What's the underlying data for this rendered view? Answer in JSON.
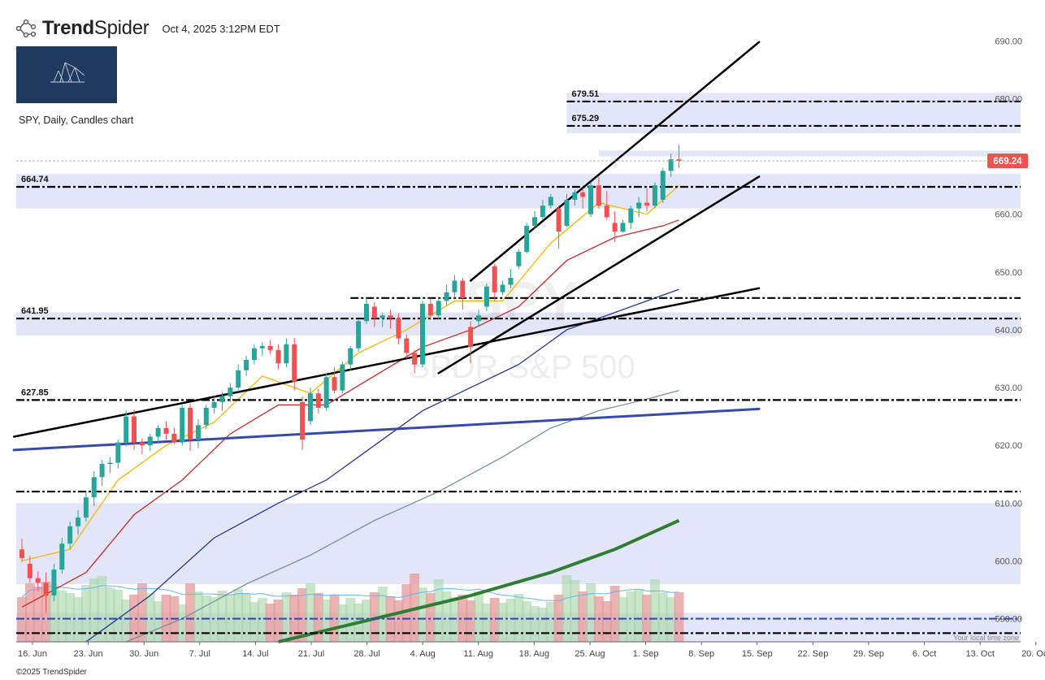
{
  "header": {
    "brand_bold": "Trend",
    "brand_light": "Spider",
    "timestamp": "Oct 4, 2025 3:12PM EDT",
    "logo_icon": "trendspider-web-icon"
  },
  "chart_title": "SPY, Daily, Candles chart",
  "watermark": {
    "ticker": "SPY",
    "name": "SPDR S&P 500"
  },
  "footer": "©2025 TrendSpider",
  "timezone_note": "Your local time zone",
  "chart_data": {
    "type": "candlestick",
    "ylim": [
      586,
      693
    ],
    "y_ticks": [
      590,
      600,
      610,
      620,
      630,
      640,
      650,
      660,
      670,
      680,
      690
    ],
    "x_tick_labels": [
      "16. Jun",
      "23. Jun",
      "30. Jun",
      "7. Jul",
      "14. Jul",
      "21. Jul",
      "28. Jul",
      "4. Aug",
      "11. Aug",
      "18. Aug",
      "25. Aug",
      "1. Sep",
      "8. Sep",
      "15. Sep",
      "22. Sep",
      "29. Sep",
      "6. Oct",
      "13. Oct",
      "20. Oct"
    ],
    "last_price": "669.24",
    "level_labels": [
      "679.51",
      "675.29",
      "664.74",
      "641.95",
      "627.85"
    ],
    "candles": [
      [
        602.0,
        603.8,
        599.8,
        600.5
      ],
      [
        599.5,
        600.8,
        596.2,
        597.0
      ],
      [
        597.0,
        598.2,
        594.8,
        596.2
      ],
      [
        596.2,
        598.0,
        591.0,
        594.0
      ],
      [
        594.0,
        599.5,
        593.0,
        598.5
      ],
      [
        598.5,
        604.0,
        597.8,
        603.0
      ],
      [
        603.0,
        606.8,
        602.0,
        606.0
      ],
      [
        606.0,
        608.8,
        604.5,
        607.5
      ],
      [
        607.5,
        612.0,
        606.8,
        611.0
      ],
      [
        611.0,
        615.5,
        609.5,
        614.5
      ],
      [
        614.5,
        617.5,
        613.0,
        616.8
      ],
      [
        616.8,
        618.0,
        615.2,
        617.0
      ],
      [
        617.0,
        621.0,
        616.0,
        620.5
      ],
      [
        620.5,
        626.0,
        619.8,
        625.0
      ],
      [
        625.0,
        626.2,
        619.2,
        620.5
      ],
      [
        620.5,
        621.2,
        618.5,
        620.0
      ],
      [
        620.0,
        622.0,
        619.0,
        621.5
      ],
      [
        621.5,
        623.5,
        620.5,
        623.0
      ],
      [
        623.0,
        624.2,
        621.0,
        622.0
      ],
      [
        622.0,
        623.0,
        620.2,
        620.5
      ],
      [
        620.5,
        627.0,
        620.0,
        626.5
      ],
      [
        626.5,
        627.2,
        619.0,
        621.0
      ],
      [
        621.0,
        624.5,
        619.5,
        623.5
      ],
      [
        623.5,
        627.0,
        622.8,
        626.5
      ],
      [
        626.5,
        628.5,
        625.5,
        627.5
      ],
      [
        627.5,
        629.2,
        626.0,
        628.5
      ],
      [
        628.5,
        630.8,
        627.5,
        630.0
      ],
      [
        630.0,
        634.0,
        629.2,
        633.0
      ],
      [
        633.0,
        635.5,
        632.0,
        634.8
      ],
      [
        634.8,
        637.5,
        634.0,
        636.8
      ],
      [
        636.8,
        637.8,
        635.5,
        637.2
      ],
      [
        637.2,
        638.2,
        635.8,
        636.5
      ],
      [
        636.5,
        637.5,
        633.2,
        634.2
      ],
      [
        634.2,
        638.5,
        633.5,
        637.5
      ],
      [
        637.5,
        638.6,
        629.5,
        631.0
      ],
      [
        627.5,
        628.5,
        619.2,
        621.0
      ],
      [
        624.2,
        630.0,
        623.5,
        629.0
      ],
      [
        629.0,
        629.8,
        625.5,
        626.5
      ],
      [
        626.5,
        632.5,
        626.0,
        631.8
      ],
      [
        631.8,
        633.5,
        629.0,
        629.5
      ],
      [
        629.5,
        634.5,
        629.0,
        634.0
      ],
      [
        634.0,
        637.2,
        633.0,
        636.8
      ],
      [
        636.8,
        641.8,
        636.2,
        641.5
      ],
      [
        641.5,
        645.5,
        641.0,
        644.5
      ],
      [
        644.0,
        644.8,
        640.5,
        642.0
      ],
      [
        642.0,
        643.0,
        640.5,
        642.5
      ],
      [
        642.5,
        643.5,
        640.2,
        642.0
      ],
      [
        642.0,
        642.8,
        637.5,
        638.5
      ],
      [
        638.5,
        639.2,
        635.0,
        636.0
      ],
      [
        636.0,
        636.5,
        632.5,
        634.0
      ],
      [
        634.0,
        645.0,
        633.5,
        644.5
      ],
      [
        644.5,
        645.5,
        641.8,
        642.5
      ],
      [
        642.5,
        645.5,
        641.8,
        645.0
      ],
      [
        645.0,
        647.8,
        644.2,
        646.5
      ],
      [
        646.5,
        649.5,
        645.5,
        648.5
      ],
      [
        648.5,
        649.0,
        643.5,
        645.5
      ],
      [
        640.5,
        641.5,
        634.2,
        637.0
      ],
      [
        641.5,
        643.5,
        640.5,
        642.5
      ],
      [
        644.0,
        648.0,
        643.2,
        647.5
      ],
      [
        651.0,
        651.5,
        645.0,
        646.5
      ],
      [
        646.5,
        648.5,
        646.0,
        647.8
      ],
      [
        647.8,
        650.5,
        647.2,
        649.0
      ],
      [
        651.0,
        654.0,
        650.5,
        653.5
      ],
      [
        653.5,
        658.5,
        653.2,
        658.0
      ],
      [
        658.0,
        660.5,
        657.5,
        659.5
      ],
      [
        659.5,
        662.5,
        659.0,
        661.5
      ],
      [
        661.5,
        663.5,
        661.0,
        663.0
      ],
      [
        661.0,
        661.5,
        654.0,
        657.0
      ],
      [
        658.0,
        663.5,
        657.8,
        662.5
      ],
      [
        662.5,
        664.2,
        661.5,
        663.8
      ],
      [
        663.8,
        664.5,
        661.0,
        663.0
      ],
      [
        660.0,
        665.5,
        659.5,
        665.0
      ],
      [
        665.0,
        666.5,
        661.0,
        661.5
      ],
      [
        661.5,
        664.0,
        659.0,
        659.5
      ],
      [
        658.5,
        660.5,
        655.2,
        657.0
      ],
      [
        657.0,
        659.0,
        656.8,
        658.5
      ],
      [
        658.5,
        661.5,
        657.5,
        661.0
      ],
      [
        661.0,
        663.0,
        659.5,
        662.0
      ],
      [
        662.0,
        664.5,
        660.5,
        661.5
      ],
      [
        661.5,
        665.5,
        661.0,
        665.0
      ],
      [
        662.5,
        668.0,
        662.0,
        667.5
      ],
      [
        667.5,
        670.5,
        666.5,
        669.5
      ],
      [
        669.5,
        672.0,
        668.0,
        669.24
      ]
    ],
    "volume_relative": [
      0.55,
      0.72,
      0.68,
      0.74,
      0.71,
      0.63,
      0.6,
      0.55,
      0.7,
      0.78,
      0.81,
      0.67,
      0.64,
      0.52,
      0.58,
      0.72,
      0.6,
      0.5,
      0.58,
      0.56,
      0.46,
      0.72,
      0.62,
      0.57,
      0.55,
      0.63,
      0.58,
      0.65,
      0.6,
      0.49,
      0.54,
      0.47,
      0.52,
      0.61,
      0.58,
      0.66,
      0.72,
      0.6,
      0.52,
      0.58,
      0.46,
      0.54,
      0.47,
      0.52,
      0.61,
      0.68,
      0.56,
      0.51,
      0.71,
      0.84,
      0.67,
      0.6,
      0.77,
      0.62,
      0.55,
      0.58,
      0.51,
      0.62,
      0.47,
      0.54,
      0.48,
      0.53,
      0.59,
      0.5,
      0.44,
      0.42,
      0.49,
      0.58,
      0.82,
      0.76,
      0.62,
      0.72,
      0.56,
      0.5,
      0.69,
      0.55,
      0.62,
      0.65,
      0.58,
      0.77,
      0.61,
      0.55,
      0.61
    ],
    "moving_averages": [
      {
        "color": "#f5b800",
        "points": [
          [
            0,
            600
          ],
          [
            6,
            602
          ],
          [
            12,
            614
          ],
          [
            18,
            620
          ],
          [
            24,
            624
          ],
          [
            30,
            632
          ],
          [
            36,
            629
          ],
          [
            42,
            636
          ],
          [
            48,
            640
          ],
          [
            54,
            645
          ],
          [
            60,
            645
          ],
          [
            66,
            655
          ],
          [
            72,
            662
          ],
          [
            78,
            660
          ],
          [
            82,
            665
          ]
        ]
      },
      {
        "color": "#c62828",
        "points": [
          [
            0,
            592
          ],
          [
            8,
            598
          ],
          [
            14,
            608
          ],
          [
            20,
            614
          ],
          [
            26,
            622
          ],
          [
            32,
            627
          ],
          [
            38,
            627
          ],
          [
            44,
            632
          ],
          [
            50,
            637
          ],
          [
            56,
            640
          ],
          [
            62,
            644
          ],
          [
            68,
            652
          ],
          [
            74,
            656
          ],
          [
            80,
            658
          ],
          [
            82,
            659
          ]
        ]
      },
      {
        "color": "#283593",
        "points": [
          [
            8,
            586
          ],
          [
            16,
            594
          ],
          [
            24,
            604
          ],
          [
            32,
            610
          ],
          [
            38,
            614
          ],
          [
            44,
            620
          ],
          [
            50,
            626
          ],
          [
            56,
            630
          ],
          [
            62,
            634
          ],
          [
            68,
            640
          ],
          [
            74,
            643
          ],
          [
            80,
            646
          ],
          [
            82,
            647
          ]
        ]
      },
      {
        "color": "#78909c",
        "points": [
          [
            13,
            586
          ],
          [
            20,
            590
          ],
          [
            28,
            596
          ],
          [
            36,
            601
          ],
          [
            44,
            607
          ],
          [
            52,
            612
          ],
          [
            60,
            618
          ],
          [
            66,
            623
          ],
          [
            72,
            626
          ],
          [
            78,
            628
          ],
          [
            82,
            629.5
          ]
        ]
      },
      {
        "color": "#2e7d32",
        "width": 4,
        "points": [
          [
            32,
            586
          ],
          [
            44,
            590
          ],
          [
            56,
            594
          ],
          [
            66,
            598
          ],
          [
            74,
            602
          ],
          [
            82,
            607
          ]
        ]
      }
    ],
    "trendlines": [
      {
        "color": "#000",
        "width": 2.5,
        "from": [
          -1,
          621.5
        ],
        "to": [
          92,
          647.2
        ]
      },
      {
        "color": "#000",
        "width": 2.5,
        "from": [
          52,
          632.5
        ],
        "to": [
          92,
          666.5
        ]
      },
      {
        "color": "#000",
        "width": 2.5,
        "from": [
          56,
          648.5
        ],
        "to": [
          92,
          689.8
        ]
      },
      {
        "color": "#3949ab",
        "width": 3,
        "from": [
          -1,
          619.2
        ],
        "to": [
          92,
          626.3
        ]
      }
    ],
    "levels": [
      {
        "price": 679.51,
        "from": 68,
        "label": "679.51"
      },
      {
        "price": 675.29,
        "from": 68,
        "label": "675.29"
      },
      {
        "price": 664.74,
        "from": -1,
        "label": "664.74"
      },
      {
        "price": 645.5,
        "from": 41
      },
      {
        "price": 641.95,
        "from": -1,
        "label": "641.95"
      },
      {
        "price": 627.85,
        "from": -1,
        "label": "627.85"
      },
      {
        "price": 612.0,
        "from": -1
      },
      {
        "price": 590.0,
        "from": -1,
        "color": "#3949ab"
      },
      {
        "price": 587.5,
        "from": -1
      }
    ],
    "zones": [
      {
        "from": 68,
        "y1": 681,
        "y2": 674
      },
      {
        "from": -1,
        "y1": 667,
        "y2": 661
      },
      {
        "from": -1,
        "y1": 643,
        "y2": 639
      },
      {
        "from": -1,
        "y1": 610,
        "y2": 596
      },
      {
        "from": -1,
        "y1": 591,
        "y2": 586
      },
      {
        "from": 72,
        "y1": 671,
        "y2": 670
      }
    ]
  }
}
